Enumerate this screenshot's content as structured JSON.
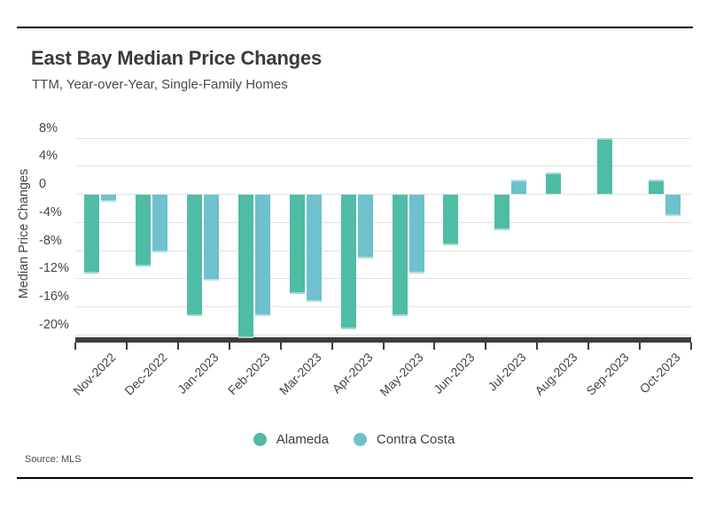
{
  "page": {
    "title": "East Bay Median Price Changes",
    "subtitle": "TTM, Year-over-Year, Single-Family Homes",
    "source": "Source: MLS"
  },
  "chart_data": {
    "type": "bar",
    "title": "East Bay Median Price Changes",
    "subtitle": "TTM, Year-over-Year, Single-Family Homes",
    "categories": [
      "Nov-2022",
      "Dec-2022",
      "Jan-2023",
      "Feb-2023",
      "Mar-2023",
      "Apr-2023",
      "May-2023",
      "Jun-2023",
      "Jul-2023",
      "Aug-2023",
      "Sep-2023",
      "Oct-2023"
    ],
    "series": [
      {
        "name": "Alameda",
        "color": "#4fbca6",
        "values": [
          -11.2,
          -10.2,
          -17.3,
          -20.4,
          -14.1,
          -19.2,
          -17.3,
          -7.2,
          -5.0,
          3.0,
          8.0,
          2.0
        ]
      },
      {
        "name": "Contra Costa",
        "color": "#6ec1cd",
        "values": [
          -1.0,
          -8.2,
          -12.2,
          -17.3,
          -15.2,
          -9.1,
          -11.2,
          0,
          2.0,
          0,
          0,
          -3.0
        ]
      }
    ],
    "xlabel": "",
    "ylabel": "Median Price Changes",
    "y_ticks": [
      "8%",
      "4%",
      "0",
      "-4%",
      "-8%",
      "-12%",
      "-16%",
      "-20%"
    ],
    "y_tick_values": [
      8,
      4,
      0,
      -4,
      -8,
      -12,
      -16,
      -20
    ],
    "ylim": [
      -21,
      8
    ],
    "unit": "%",
    "grid": true,
    "legend_position": "bottom",
    "source": "Source: MLS",
    "colors": {
      "grid": "#e1e1e1",
      "axis": "#3d3d3d",
      "text": "#454545",
      "rule": "#000000"
    }
  }
}
